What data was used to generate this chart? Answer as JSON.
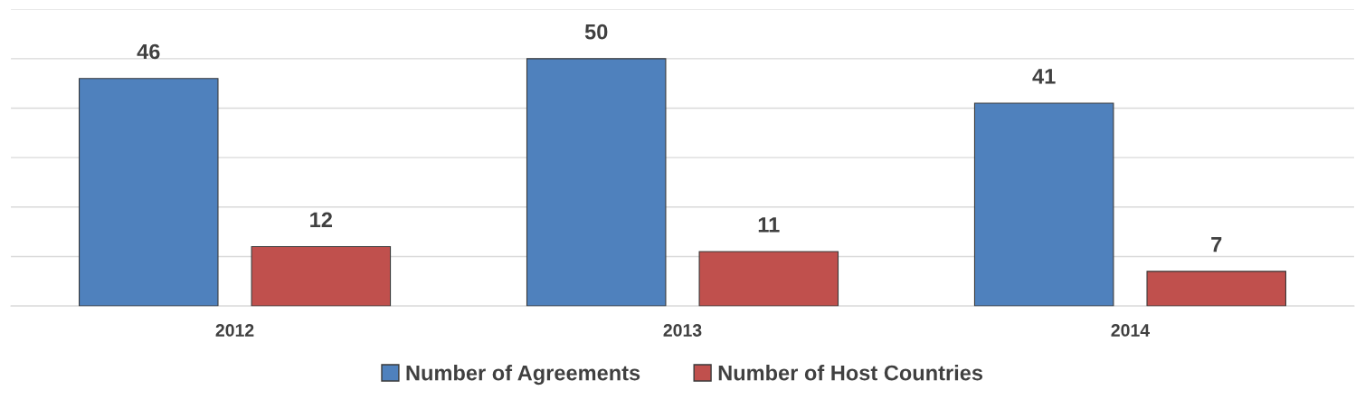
{
  "chart_data": {
    "type": "bar",
    "categories": [
      "2012",
      "2013",
      "2014"
    ],
    "series": [
      {
        "name": "Number of Agreements",
        "color": "#4f81bd",
        "values": [
          46,
          50,
          41
        ]
      },
      {
        "name": "Number of Host Countries",
        "color": "#c0504d",
        "values": [
          12,
          11,
          7
        ]
      }
    ],
    "ylim": [
      0,
      60
    ],
    "yticks": [
      {
        "value": 0,
        "label": null
      },
      {
        "value": 10,
        "label": null
      },
      {
        "value": 20,
        "label": null
      },
      {
        "value": 30,
        "label": null
      },
      {
        "value": 40,
        "label": null
      },
      {
        "value": 50,
        "label": null
      },
      {
        "value": 60,
        "label": null
      }
    ],
    "tick_labels": "x",
    "grid": "y",
    "data_labels": true,
    "legend": "bottom"
  }
}
